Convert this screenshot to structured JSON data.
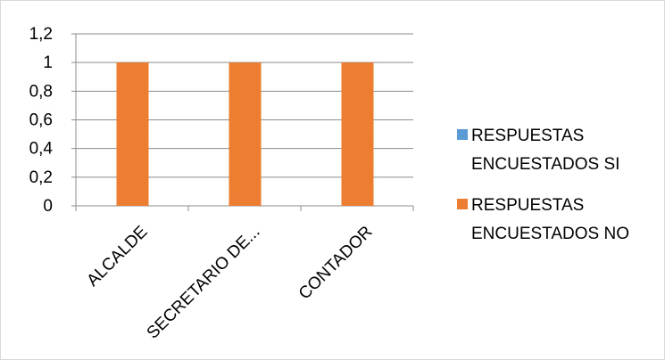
{
  "chart_data": {
    "type": "bar",
    "categories": [
      "ALCALDE",
      "SECRETARIO DE...",
      "CONTADOR"
    ],
    "series": [
      {
        "name": "RESPUESTAS ENCUESTADOS SI",
        "values": [
          0,
          0,
          0
        ],
        "color": "#5b9bd5"
      },
      {
        "name": "RESPUESTAS ENCUESTADOS NO",
        "values": [
          1,
          1,
          1
        ],
        "color": "#ed7d31"
      }
    ],
    "y_ticks": [
      "0",
      "0,2",
      "0,4",
      "0,6",
      "0,8",
      "1",
      "1,2"
    ],
    "ylim": [
      0,
      1.2
    ],
    "grid": true,
    "legend_position": "right",
    "legend": [
      {
        "lines": [
          "RESPUESTAS",
          "ENCUESTADOS SI"
        ],
        "color": "#5b9bd5"
      },
      {
        "lines": [
          "RESPUESTAS",
          "ENCUESTADOS NO"
        ],
        "color": "#ed7d31"
      }
    ]
  }
}
